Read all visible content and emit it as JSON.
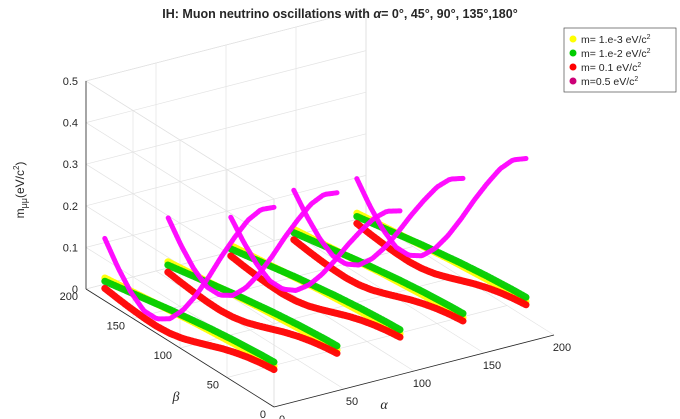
{
  "chart_data": {
    "type": "scatter3d",
    "title_prefix": "IH: Muon neutrino oscillations with ",
    "title_symbol": "α",
    "title_suffix": "= 0°, 45°, 90°, 135°,180°",
    "xlabel": "α",
    "ylabel": "β",
    "zlabel_main": "m",
    "zlabel_sub": "μμ",
    "zlabel_unit": "(eV/c",
    "zlabel_sup": "2",
    "zlabel_close": ")",
    "xlim": [
      0,
      200
    ],
    "ylim": [
      0,
      200
    ],
    "zlim": [
      0,
      0.5
    ],
    "xticks": [
      "0",
      "50",
      "100",
      "150",
      "200"
    ],
    "yticks": [
      "0",
      "50",
      "100",
      "150",
      "200"
    ],
    "zticks": [
      "0",
      "0.1",
      "0.2",
      "0.3",
      "0.4",
      "0.5"
    ],
    "grid": true,
    "legend_position": "top-right",
    "alpha_values": [
      0,
      45,
      90,
      135,
      180
    ],
    "beta_range": [
      0,
      180
    ],
    "series": [
      {
        "name": "m= 1.e-3 eV/c",
        "sup": "2",
        "color": "#ffff00",
        "profile": [
          0.098,
          0.096,
          0.094,
          0.092,
          0.089,
          0.086,
          0.083,
          0.079,
          0.075,
          0.071,
          0.067,
          0.063,
          0.059,
          0.055
        ]
      },
      {
        "name": "m= 1.e-2 eV/c",
        "sup": "2",
        "color": "#00cc00",
        "profile": [
          0.108,
          0.106,
          0.103,
          0.1,
          0.096,
          0.092,
          0.087,
          0.082,
          0.077,
          0.071,
          0.065,
          0.059,
          0.053,
          0.047
        ]
      },
      {
        "name": "m= 0.1 eV/c",
        "sup": "2",
        "color": "#ff0000",
        "profile": [
          0.09,
          0.086,
          0.08,
          0.072,
          0.062,
          0.05,
          0.038,
          0.027,
          0.02,
          0.017,
          0.018,
          0.021,
          0.025,
          0.03
        ]
      },
      {
        "name": "m=0.5 eV/c",
        "sup": "2",
        "color": "#ff00ff",
        "profile": [
          0.48,
          0.455,
          0.41,
          0.35,
          0.285,
          0.215,
          0.15,
          0.095,
          0.055,
          0.035,
          0.035,
          0.06,
          0.1,
          0.15
        ]
      }
    ]
  }
}
